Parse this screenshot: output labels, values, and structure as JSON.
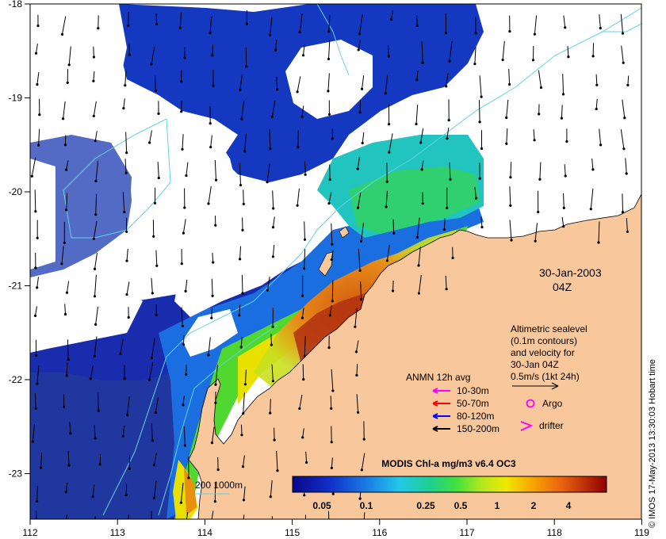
{
  "axes": {
    "x_ticks": [
      "112",
      "113",
      "114",
      "115",
      "116",
      "117",
      "118",
      "119"
    ],
    "y_ticks": [
      "-18",
      "-19",
      "-20",
      "-21",
      "-22",
      "-23"
    ]
  },
  "timestamp": {
    "date": "30-Jan-2003",
    "time": "04Z"
  },
  "altimetry_note": {
    "lines": [
      "Altimetric sealevel",
      "(0.1m contours)",
      "and velocity for",
      "30-Jan 04Z",
      "0.5m/s (1kt 24h)"
    ]
  },
  "anmn_legend": {
    "title": "ANMN 12h avg",
    "items": [
      {
        "label": "10-30m",
        "color": "#ff00ff"
      },
      {
        "label": "50-70m",
        "color": "#ff0000"
      },
      {
        "label": "80-120m",
        "color": "#0000ff"
      },
      {
        "label": "150-200m",
        "color": "#000000"
      }
    ]
  },
  "markers": {
    "argo": "Argo",
    "drifter": "drifter"
  },
  "isobath_legend": "200  1000m",
  "colorbar": {
    "title": "MODIS Chl-a mg/m3 v6.4 OC3",
    "ticks": [
      "0.05",
      "0.1",
      "0.25",
      "0.5",
      "1",
      "2",
      "4"
    ]
  },
  "credit": "© IMOS 17-May-2013 13:30:03 Hobart time",
  "colors": {
    "land": "#f8c79b",
    "coast_line": "#000000",
    "isobath": "#5fd4e6",
    "vector": "#000000"
  }
}
